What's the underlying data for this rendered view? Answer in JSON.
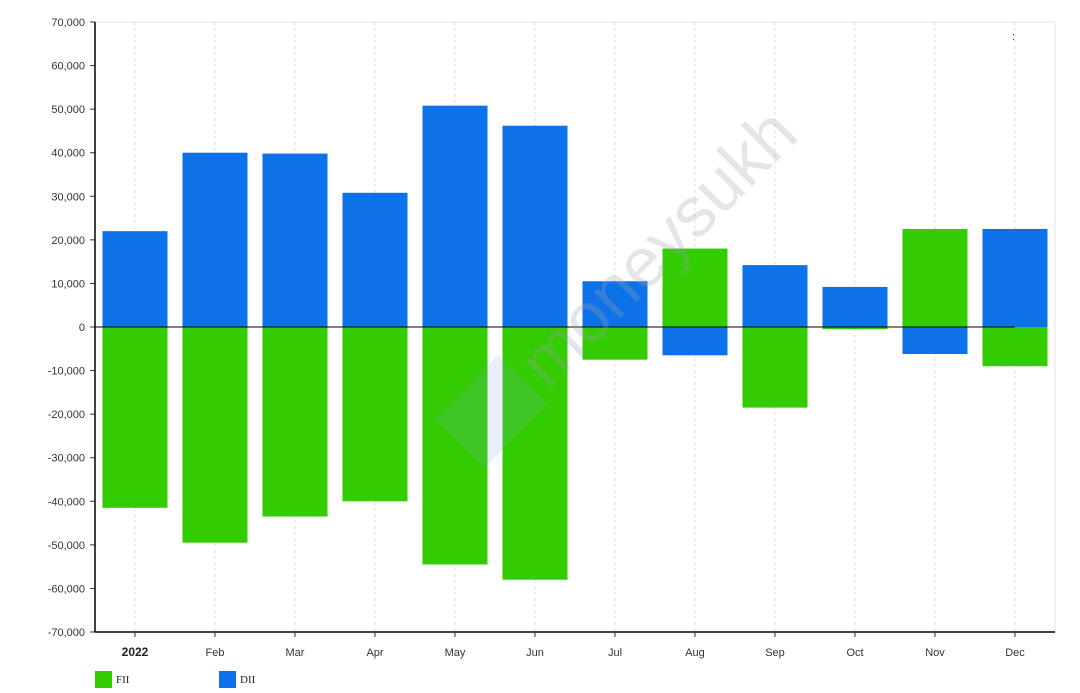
{
  "chart_data": {
    "type": "bar",
    "categories": [
      "2022",
      "Feb",
      "Mar",
      "Apr",
      "May",
      "Jun",
      "Jul",
      "Aug",
      "Sep",
      "Oct",
      "Nov",
      "Dec"
    ],
    "series": [
      {
        "name": "FII",
        "color": "#33cc00",
        "values": [
          -41500,
          -49500,
          -43500,
          -40000,
          -54500,
          -58000,
          -7500,
          18000,
          -18500,
          -500,
          22500,
          -9000
        ]
      },
      {
        "name": "DII",
        "color": "#0d72e8",
        "values": [
          22000,
          40000,
          39800,
          30800,
          50800,
          46200,
          10500,
          -6500,
          14200,
          9200,
          -6200,
          22500
        ]
      }
    ],
    "ylim": [
      -70000,
      70000
    ],
    "yticks": [
      70000,
      60000,
      50000,
      40000,
      30000,
      20000,
      10000,
      0,
      -10000,
      -20000,
      -30000,
      -40000,
      -50000,
      -60000,
      -70000
    ],
    "ytick_labels": [
      "70,000",
      "60,000",
      "50,000",
      "40,000",
      "30,000",
      "20,000",
      "10,000",
      "0",
      "-10,000",
      "-20,000",
      "-30,000",
      "-40,000",
      "-50,000",
      "-60,000",
      "-70,000"
    ],
    "grid": true,
    "legend_position": "bottom-left",
    "watermark": "moneysukh",
    "corner_mark": ":"
  }
}
